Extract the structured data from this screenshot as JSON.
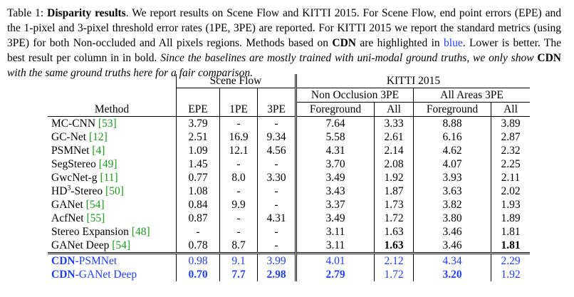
{
  "caption": {
    "label": "Table 1:",
    "title": "Disparity results",
    "t1": ". We report results on Scene Flow and KITTI 2015. For Scene Flow, end point errors (EPE) and the 1-pixel and 3-pixel threshold error rates (1PE, 3PE) are reported. For KITTI 2015 we report the standard metrics (using 3PE) for both Non-occluded and All pixels regions. Methods based on ",
    "cdn": "CDN",
    "t2": " are highlighted in ",
    "blue_word": "blue",
    "t3": ". Lower is better. The best result per column in in bold. ",
    "italic1": "Since the baselines are mostly trained with uni-modal ground truths, we only show ",
    "cdn2": "CDN",
    "italic2": " with the same ground truths here for a fair comparison."
  },
  "header": {
    "scene_flow": "Scene Flow",
    "kitti": "KITTI 2015",
    "non_occ": "Non Occlusion 3PE",
    "all_areas": "All Areas 3PE",
    "method": "Method",
    "epe": "EPE",
    "pe1": "1PE",
    "pe3": "3PE",
    "fg1": "Foreground",
    "all1": "All",
    "fg2": "Foreground",
    "all2": "All"
  },
  "rows": [
    {
      "name": "MC-CNN ",
      "ref": "[53]",
      "sup": "",
      "name2": "",
      "epe": "3.79",
      "pe1": "-",
      "pe3": "-",
      "nfg": "7.64",
      "nall": "3.33",
      "afg": "8.88",
      "aall": "3.89"
    },
    {
      "name": "GC-Net ",
      "ref": "[12]",
      "sup": "",
      "name2": "",
      "epe": "2.51",
      "pe1": "16.9",
      "pe3": "9.34",
      "nfg": "5.58",
      "nall": "2.61",
      "afg": "6.16",
      "aall": "2.87"
    },
    {
      "name": "PSMNet ",
      "ref": "[4]",
      "sup": "",
      "name2": "",
      "epe": "1.09",
      "pe1": "12.1",
      "pe3": "4.56",
      "nfg": "4.31",
      "nall": "2.14",
      "afg": "4.62",
      "aall": "2.32"
    },
    {
      "name": "SegStereo ",
      "ref": "[49]",
      "sup": "",
      "name2": "",
      "epe": "1.45",
      "pe1": "-",
      "pe3": "-",
      "nfg": "3.70",
      "nall": "2.08",
      "afg": "4.07",
      "aall": "2.25"
    },
    {
      "name": "GwcNet-g ",
      "ref": "[11]",
      "sup": "",
      "name2": "",
      "epe": "0.77",
      "pe1": "8.0",
      "pe3": "3.30",
      "nfg": "3.49",
      "nall": "1.92",
      "afg": "3.93",
      "aall": "2.11"
    },
    {
      "name": "HD",
      "ref": "[50]",
      "sup": "3",
      "name2": "-Stereo ",
      "epe": "1.08",
      "pe1": "-",
      "pe3": "-",
      "nfg": "3.43",
      "nall": "1.87",
      "afg": "3.63",
      "aall": "2.02"
    },
    {
      "name": "GANet ",
      "ref": "[54]",
      "sup": "",
      "name2": "",
      "epe": "0.84",
      "pe1": "9.9",
      "pe3": "-",
      "nfg": "3.37",
      "nall": "1.73",
      "afg": "3.82",
      "aall": "1.93"
    },
    {
      "name": "AcfNet ",
      "ref": "[55]",
      "sup": "",
      "name2": "",
      "epe": "0.87",
      "pe1": "-",
      "pe3": "4.31",
      "nfg": "3.49",
      "nall": "1.72",
      "afg": "3.80",
      "aall": "1.89"
    },
    {
      "name": "Stereo Expansion ",
      "ref": "[48]",
      "sup": "",
      "name2": "",
      "epe": "-",
      "pe1": "-",
      "pe3": "-",
      "nfg": "3.11",
      "nall": "1.63",
      "afg": "3.46",
      "aall": "1.81"
    },
    {
      "name": "GANet Deep ",
      "ref": "[54]",
      "sup": "",
      "name2": "",
      "epe": "0.78",
      "pe1": "8.7",
      "pe3": "-",
      "nfg": "3.11",
      "nall": "1.63",
      "afg": "3.46",
      "aall": "1.81"
    }
  ],
  "cdn_rows": [
    {
      "bold_part": "CDN",
      "rest": "-PSMNet",
      "epe": "0.98",
      "pe1": "9.1",
      "pe3": "3.99",
      "nfg": "4.01",
      "nall": "2.12",
      "afg": "4.34",
      "aall": "2.29"
    },
    {
      "bold_part": "CDN",
      "rest": "-GANet Deep",
      "epe": "0.70",
      "pe1": "7.7",
      "pe3": "2.98",
      "nfg": "2.79",
      "nall": "1.72",
      "afg": "3.20",
      "aall": "1.92"
    }
  ]
}
